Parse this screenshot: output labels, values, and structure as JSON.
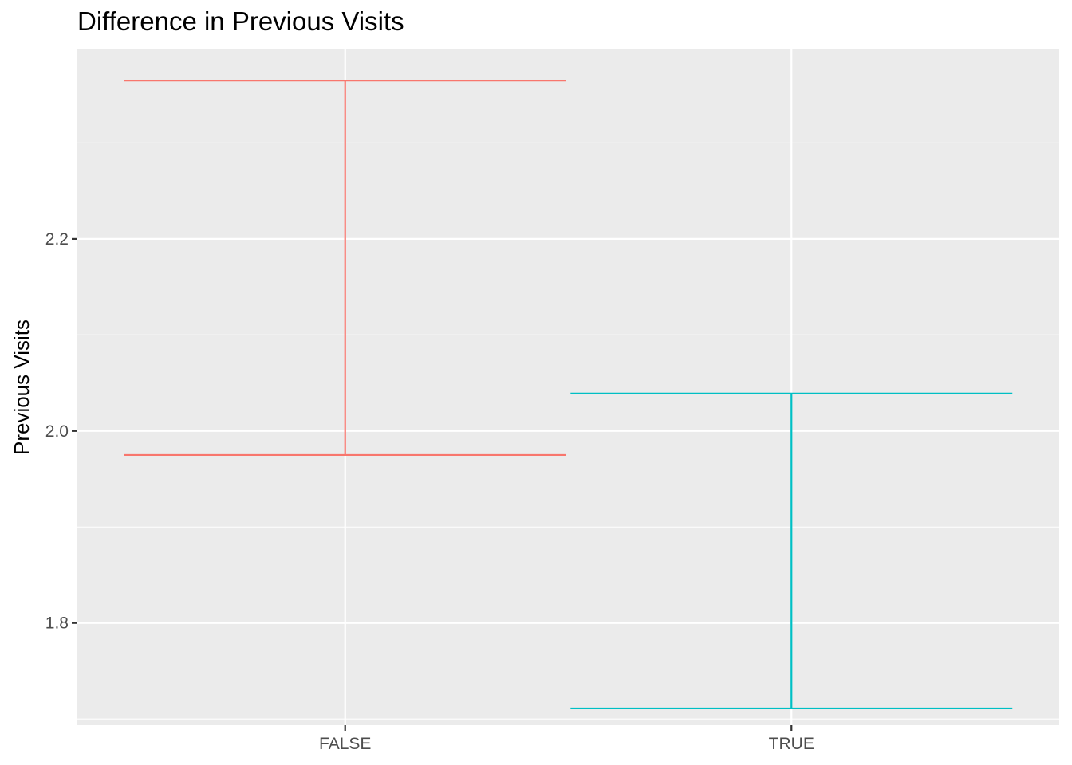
{
  "chart_data": {
    "type": "errorbar",
    "title": "Difference in Previous Visits",
    "xlabel": "",
    "ylabel": "Previous Visits",
    "categories": [
      "FALSE",
      "TRUE"
    ],
    "series": [
      {
        "category": "FALSE",
        "lower": 1.975,
        "upper": 2.365,
        "color": "#F8766D"
      },
      {
        "category": "TRUE",
        "lower": 1.711,
        "upper": 2.039,
        "color": "#00BFC4"
      }
    ],
    "ylim": [
      1.6935,
      2.3975
    ],
    "y_ticks": [
      1.8,
      2.0,
      2.2
    ],
    "y_tick_labels": [
      "1.8",
      "2.0",
      "2.2"
    ],
    "y_minor_ticks": [
      1.7,
      1.9,
      2.1,
      2.3
    ],
    "grid": true,
    "legend": "none",
    "panel_background": "#EBEBEB",
    "grid_color": "#FFFFFF"
  }
}
